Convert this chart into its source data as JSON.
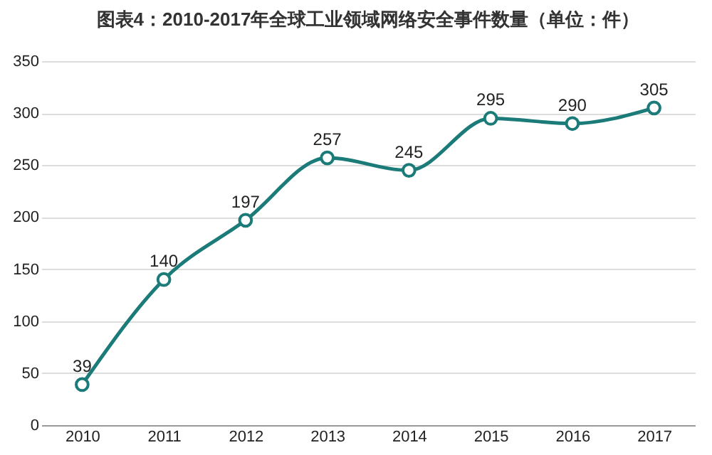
{
  "chart_data": {
    "type": "line",
    "title": "图表4：2010-2017年全球工业领域网络安全事件数量（单位：件）",
    "categories": [
      "2010",
      "2011",
      "2012",
      "2013",
      "2014",
      "2015",
      "2016",
      "2017"
    ],
    "series": [
      {
        "color": "#1b7b78",
        "values": [
          39,
          140,
          197,
          257,
          245,
          295,
          290,
          305
        ]
      }
    ],
    "ylim": [
      0,
      350
    ],
    "yticks": [
      0,
      50,
      100,
      150,
      200,
      250,
      300,
      350
    ],
    "grid": "y",
    "marker": "circle",
    "data_labels": true
  }
}
